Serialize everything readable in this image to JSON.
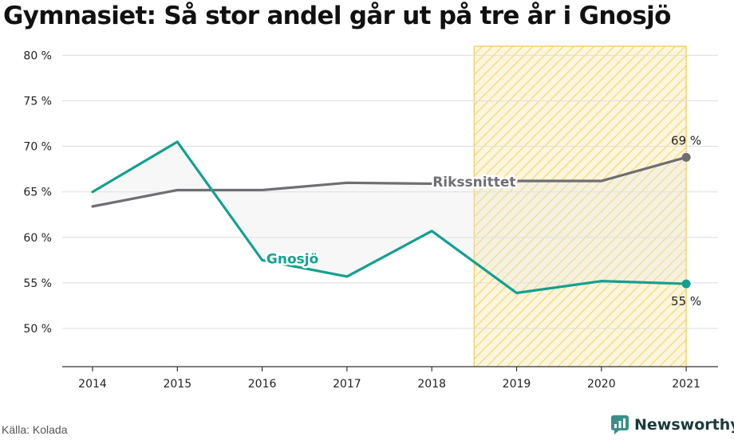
{
  "title": "Gymnasiet: Så stor andel går ut på tre år i Gnosjö",
  "source": "Källa: Kolada",
  "brand": {
    "name": "Newsworthy",
    "icon": "newsworthy-logo-icon",
    "color": "#3a8f89"
  },
  "chart_data": {
    "type": "line",
    "x": [
      2014,
      2015,
      2016,
      2017,
      2018,
      2019,
      2020,
      2021
    ],
    "ylim": [
      45.8,
      81
    ],
    "yticks": [
      50,
      55,
      60,
      65,
      70,
      75,
      80
    ],
    "ytick_labels": [
      "50 %",
      "55 %",
      "60 %",
      "65 %",
      "70 %",
      "75 %",
      "80 %"
    ],
    "xtick_labels": [
      "2014",
      "2015",
      "2016",
      "2017",
      "2018",
      "2019",
      "2020",
      "2021"
    ],
    "grid": true,
    "highlight_range": [
      2018.5,
      2021
    ],
    "series": [
      {
        "name": "Rikssnittet",
        "color": "#6e6e73",
        "values": [
          63.4,
          65.2,
          65.2,
          66.0,
          65.9,
          66.2,
          66.2,
          68.8
        ],
        "end_label": "69 %"
      },
      {
        "name": "Gnosjö",
        "color": "#14a090",
        "values": [
          65.0,
          70.5,
          57.5,
          55.7,
          60.7,
          53.9,
          55.2,
          54.9
        ],
        "end_label": "55 %"
      }
    ]
  }
}
